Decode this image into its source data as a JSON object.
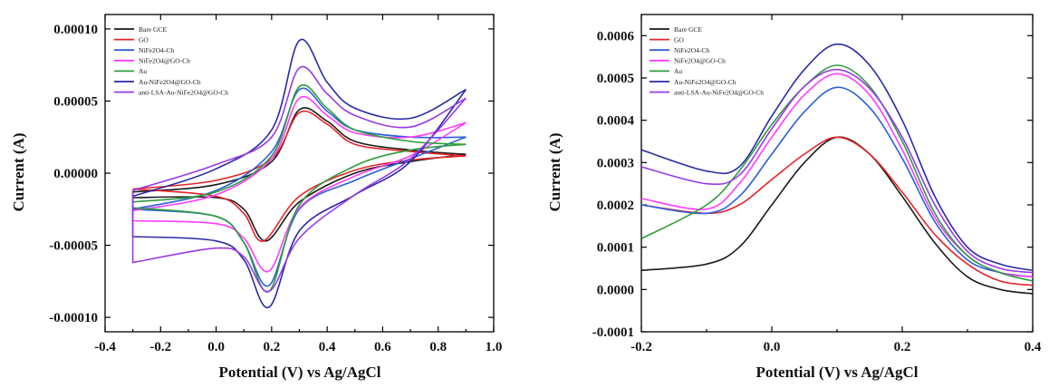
{
  "chart_data": [
    {
      "type": "line",
      "title": "",
      "xlabel": "Potential (V) vs Ag/AgCl",
      "ylabel": "Current (A)",
      "xlim": [
        -0.4,
        1.0
      ],
      "ylim": [
        -0.00011,
        0.00011
      ],
      "xticks": [
        "-0.4",
        "-0.2",
        "0.0",
        "0.2",
        "0.4",
        "0.6",
        "0.8",
        "1.0"
      ],
      "xtick_values": [
        -0.4,
        -0.2,
        0.0,
        0.2,
        0.4,
        0.6,
        0.8,
        1.0
      ],
      "yticks": [
        "0.00010",
        "0.00005",
        "0.00000",
        "-0.00005",
        "-0.00010"
      ],
      "ytick_values": [
        0.0001,
        5e-05,
        0.0,
        -5e-05,
        -0.0001
      ],
      "grid": false,
      "legend_position": "top-left",
      "series": [
        {
          "name": "Bare GCE",
          "color": "#1a1a1a",
          "upper": [
            [
              -0.3,
              -1.3e-05
            ],
            [
              0.0,
              -8e-06
            ],
            [
              0.2,
              8e-06
            ],
            [
              0.3,
              4.4e-05
            ],
            [
              0.4,
              3.6e-05
            ],
            [
              0.5,
              2.2e-05
            ],
            [
              0.7,
              1.6e-05
            ],
            [
              0.9,
              1.3e-05
            ]
          ],
          "lower": [
            [
              -0.3,
              -1.7e-05
            ],
            [
              0.0,
              -1.7e-05
            ],
            [
              0.1,
              -2.5e-05
            ],
            [
              0.18,
              -4.7e-05
            ],
            [
              0.3,
              -2e-05
            ],
            [
              0.5,
              0.0
            ],
            [
              0.7,
              8e-06
            ],
            [
              0.9,
              1.3e-05
            ]
          ]
        },
        {
          "name": "GO",
          "color": "#e8242a",
          "upper": [
            [
              -0.3,
              -1.1e-05
            ],
            [
              0.0,
              -5e-06
            ],
            [
              0.2,
              1e-05
            ],
            [
              0.3,
              4.2e-05
            ],
            [
              0.4,
              3.4e-05
            ],
            [
              0.5,
              2e-05
            ],
            [
              0.7,
              1.5e-05
            ],
            [
              0.9,
              1.2e-05
            ]
          ],
          "lower": [
            [
              -0.3,
              -1.1e-05
            ],
            [
              0.0,
              -1.6e-05
            ],
            [
              0.1,
              -2.8e-05
            ],
            [
              0.17,
              -4.7e-05
            ],
            [
              0.3,
              -1.6e-05
            ],
            [
              0.5,
              2e-06
            ],
            [
              0.7,
              9e-06
            ],
            [
              0.9,
              1.2e-05
            ]
          ]
        },
        {
          "name": "NiFe2O4-Ch",
          "color": "#2b5fd9",
          "upper": [
            [
              -0.3,
              -2.5e-05
            ],
            [
              0.0,
              -1.2e-05
            ],
            [
              0.2,
              1.5e-05
            ],
            [
              0.3,
              5.8e-05
            ],
            [
              0.4,
              4.3e-05
            ],
            [
              0.5,
              3e-05
            ],
            [
              0.7,
              2.5e-05
            ],
            [
              0.9,
              2.5e-05
            ]
          ],
          "lower": [
            [
              -0.3,
              -2.5e-05
            ],
            [
              0.0,
              -3e-05
            ],
            [
              0.1,
              -4.8e-05
            ],
            [
              0.19,
              -7.8e-05
            ],
            [
              0.3,
              -2.5e-05
            ],
            [
              0.5,
              -5e-06
            ],
            [
              0.7,
              1e-05
            ],
            [
              0.9,
              2.5e-05
            ]
          ]
        },
        {
          "name": "NiFe2O4@GO-Ch",
          "color": "#ff3cff",
          "upper": [
            [
              -0.3,
              -2.6e-05
            ],
            [
              0.0,
              -1.5e-05
            ],
            [
              0.2,
              1e-05
            ],
            [
              0.3,
              5.2e-05
            ],
            [
              0.4,
              4e-05
            ],
            [
              0.5,
              2.8e-05
            ],
            [
              0.7,
              2.5e-05
            ],
            [
              0.9,
              3.5e-05
            ]
          ],
          "lower": [
            [
              -0.3,
              -3.3e-05
            ],
            [
              0.0,
              -3.5e-05
            ],
            [
              0.1,
              -4.5e-05
            ],
            [
              0.19,
              -6.8e-05
            ],
            [
              0.3,
              -2.4e-05
            ],
            [
              0.5,
              -2e-06
            ],
            [
              0.7,
              1.2e-05
            ],
            [
              0.9,
              3.5e-05
            ]
          ]
        },
        {
          "name": "Au",
          "color": "#2e9e3e",
          "upper": [
            [
              -0.3,
              -2e-05
            ],
            [
              0.0,
              -1.3e-05
            ],
            [
              0.2,
              1.2e-05
            ],
            [
              0.3,
              6e-05
            ],
            [
              0.4,
              4.5e-05
            ],
            [
              0.5,
              3e-05
            ],
            [
              0.7,
              2.2e-05
            ],
            [
              0.9,
              2e-05
            ]
          ],
          "lower": [
            [
              -0.3,
              -2.4e-05
            ],
            [
              0.0,
              -3e-05
            ],
            [
              0.1,
              -4.8e-05
            ],
            [
              0.19,
              -8.2e-05
            ],
            [
              0.3,
              -2.2e-05
            ],
            [
              0.5,
              5e-06
            ],
            [
              0.7,
              1.6e-05
            ],
            [
              0.9,
              2e-05
            ]
          ]
        },
        {
          "name": "Au-NiFe2O4@GO-Ch",
          "color": "#2a2aa8",
          "upper": [
            [
              -0.3,
              -1.6e-05
            ],
            [
              0.0,
              3e-06
            ],
            [
              0.2,
              3e-05
            ],
            [
              0.3,
              9.2e-05
            ],
            [
              0.4,
              6.3e-05
            ],
            [
              0.5,
              4.5e-05
            ],
            [
              0.7,
              3.8e-05
            ],
            [
              0.9,
              5.8e-05
            ]
          ],
          "lower": [
            [
              -0.3,
              -4.4e-05
            ],
            [
              0.0,
              -4.7e-05
            ],
            [
              0.1,
              -6e-05
            ],
            [
              0.19,
              -9.3e-05
            ],
            [
              0.3,
              -4e-05
            ],
            [
              0.5,
              -1.5e-05
            ],
            [
              0.7,
              8e-06
            ],
            [
              0.9,
              5.8e-05
            ]
          ]
        },
        {
          "name": "anti-LSA-Au-NiFe2O4@GO-Ch",
          "color": "#9a3ae8",
          "upper": [
            [
              -0.3,
              -1.2e-05
            ],
            [
              0.0,
              6e-06
            ],
            [
              0.2,
              2.5e-05
            ],
            [
              0.3,
              7.3e-05
            ],
            [
              0.4,
              5.5e-05
            ],
            [
              0.5,
              4e-05
            ],
            [
              0.7,
              3.2e-05
            ],
            [
              0.9,
              5.2e-05
            ]
          ],
          "lower": [
            [
              -0.3,
              -6.2e-05
            ],
            [
              0.0,
              -5.2e-05
            ],
            [
              0.1,
              -5.8e-05
            ],
            [
              0.19,
              -8.2e-05
            ],
            [
              0.3,
              -4.5e-05
            ],
            [
              0.5,
              -1.5e-05
            ],
            [
              0.7,
              1e-05
            ],
            [
              0.9,
              5.2e-05
            ]
          ]
        }
      ]
    },
    {
      "type": "line",
      "title": "",
      "xlabel": "Potential (V) vs Ag/AgCl",
      "ylabel": "Current (A)",
      "xlim": [
        -0.2,
        0.4
      ],
      "ylim": [
        -0.0001,
        0.00065
      ],
      "xticks": [
        "-0.2",
        "0.0",
        "0.2",
        "0.4"
      ],
      "xtick_values": [
        -0.2,
        0.0,
        0.2,
        0.4
      ],
      "yticks": [
        "0.0006",
        "0.0005",
        "0.0004",
        "0.0003",
        "0.0002",
        "0.0001",
        "0.0000",
        "-0.0001"
      ],
      "ytick_values": [
        0.0006,
        0.0005,
        0.0004,
        0.0003,
        0.0002,
        0.0001,
        0.0,
        -0.0001
      ],
      "grid": false,
      "legend_position": "top-left",
      "series": [
        {
          "name": "Bare GCE",
          "color": "#1a1a1a",
          "points": [
            [
              -0.2,
              4.5e-05
            ],
            [
              -0.1,
              6e-05
            ],
            [
              -0.05,
              0.0001
            ],
            [
              0.0,
              0.0002
            ],
            [
              0.05,
              0.0003
            ],
            [
              0.1,
              0.00036
            ],
            [
              0.15,
              0.00032
            ],
            [
              0.2,
              0.00022
            ],
            [
              0.25,
              0.00011
            ],
            [
              0.3,
              3e-05
            ],
            [
              0.35,
              0.0
            ],
            [
              0.4,
              -1e-05
            ]
          ]
        },
        {
          "name": "GO",
          "color": "#e8242a",
          "points": [
            [
              -0.2,
              0.0002
            ],
            [
              -0.1,
              0.00018
            ],
            [
              -0.05,
              0.0002
            ],
            [
              0.0,
              0.00026
            ],
            [
              0.05,
              0.00032
            ],
            [
              0.1,
              0.00036
            ],
            [
              0.15,
              0.00032
            ],
            [
              0.2,
              0.00023
            ],
            [
              0.25,
              0.00013
            ],
            [
              0.3,
              6e-05
            ],
            [
              0.35,
              2e-05
            ],
            [
              0.4,
              1e-05
            ]
          ]
        },
        {
          "name": "NiFe2O4-Ch",
          "color": "#2b5fd9",
          "points": [
            [
              -0.2,
              0.0002
            ],
            [
              -0.1,
              0.00018
            ],
            [
              -0.05,
              0.00022
            ],
            [
              0.0,
              0.00032
            ],
            [
              0.05,
              0.00042
            ],
            [
              0.1,
              0.000478
            ],
            [
              0.15,
              0.00043
            ],
            [
              0.2,
              0.00031
            ],
            [
              0.25,
              0.00016
            ],
            [
              0.3,
              7e-05
            ],
            [
              0.35,
              4e-05
            ],
            [
              0.4,
              3e-05
            ]
          ]
        },
        {
          "name": "NiFe2O4@GO-Ch",
          "color": "#ff3cff",
          "points": [
            [
              -0.2,
              0.000215
            ],
            [
              -0.1,
              0.00019
            ],
            [
              -0.05,
              0.00025
            ],
            [
              0.0,
              0.00036
            ],
            [
              0.05,
              0.00046
            ],
            [
              0.1,
              0.00051
            ],
            [
              0.15,
              0.00046
            ],
            [
              0.2,
              0.00033
            ],
            [
              0.25,
              0.00017
            ],
            [
              0.3,
              8e-05
            ],
            [
              0.35,
              4e-05
            ],
            [
              0.4,
              3e-05
            ]
          ]
        },
        {
          "name": "Au",
          "color": "#2e9e3e",
          "points": [
            [
              -0.2,
              0.00012
            ],
            [
              -0.1,
              0.0002
            ],
            [
              -0.05,
              0.00028
            ],
            [
              0.0,
              0.00039
            ],
            [
              0.05,
              0.00048
            ],
            [
              0.1,
              0.00053
            ],
            [
              0.15,
              0.00048
            ],
            [
              0.2,
              0.00035
            ],
            [
              0.25,
              0.00018
            ],
            [
              0.3,
              8e-05
            ],
            [
              0.35,
              4e-05
            ],
            [
              0.4,
              2e-05
            ]
          ]
        },
        {
          "name": "Au-NiFe2O4@GO-Ch",
          "color": "#2a2aa8",
          "points": [
            [
              -0.2,
              0.00033
            ],
            [
              -0.1,
              0.00028
            ],
            [
              -0.05,
              0.00029
            ],
            [
              0.0,
              0.00041
            ],
            [
              0.05,
              0.00052
            ],
            [
              0.1,
              0.00058
            ],
            [
              0.15,
              0.00053
            ],
            [
              0.2,
              0.0004
            ],
            [
              0.25,
              0.00022
            ],
            [
              0.3,
              0.0001
            ],
            [
              0.35,
              6e-05
            ],
            [
              0.4,
              4.5e-05
            ]
          ]
        },
        {
          "name": "anti-LSA-Au-NiFe2O4@GO-Ch",
          "color": "#9a3ae8",
          "points": [
            [
              -0.2,
              0.00029
            ],
            [
              -0.1,
              0.00025
            ],
            [
              -0.05,
              0.00027
            ],
            [
              0.0,
              0.00038
            ],
            [
              0.05,
              0.00048
            ],
            [
              0.1,
              0.00052
            ],
            [
              0.15,
              0.000475
            ],
            [
              0.2,
              0.00036
            ],
            [
              0.25,
              0.0002
            ],
            [
              0.3,
              9e-05
            ],
            [
              0.35,
              5e-05
            ],
            [
              0.4,
              4e-05
            ]
          ]
        }
      ]
    }
  ]
}
